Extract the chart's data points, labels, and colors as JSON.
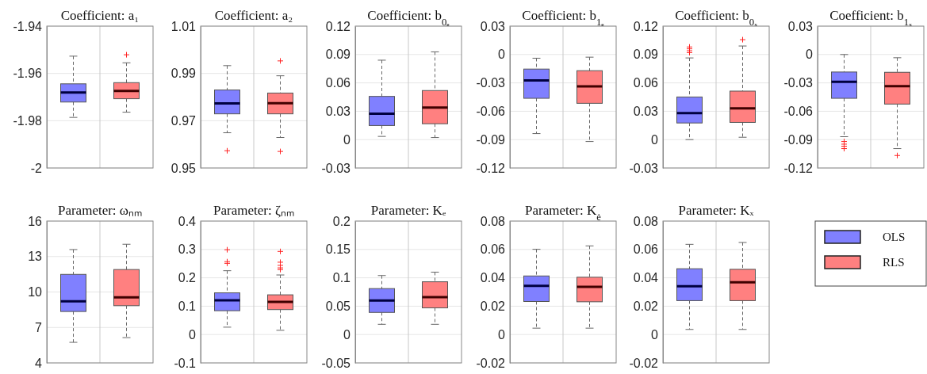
{
  "chart_data": [
    {
      "type": "box",
      "title": "Coefficient: a₁",
      "categories": [
        null
      ],
      "ylim": [
        -2,
        -1.94
      ],
      "yticks": [
        -2,
        -1.98,
        -1.96,
        -1.94
      ],
      "grid": true,
      "series": [
        {
          "color": "#8080ff",
          "boxes": [
            {
              "low": -1.9786,
              "q1": -1.9721,
              "median": -1.9681,
              "q3": -1.9644,
              "high": -1.9527
            }
          ]
        },
        {
          "color": "#ff8080",
          "boxes": [
            {
              "low": -1.9764,
              "q1": -1.9707,
              "median": -1.9674,
              "q3": -1.9639,
              "high": -1.9555,
              "outliers": [
                -1.9521
              ]
            }
          ]
        }
      ]
    },
    {
      "type": "box",
      "title": "Coefficient: a₂",
      "categories": [
        null
      ],
      "ylim": [
        0.95,
        1.01
      ],
      "yticks": [
        0.95,
        0.97,
        0.99,
        1.01
      ],
      "grid": true,
      "series": [
        {
          "color": "#8080ff",
          "boxes": [
            {
              "low": 0.9649,
              "q1": 0.9729,
              "median": 0.9773,
              "q3": 0.983,
              "high": 0.9933,
              "outliers": [
                0.9573
              ]
            }
          ]
        },
        {
          "color": "#ff8080",
          "boxes": [
            {
              "low": 0.9629,
              "q1": 0.9729,
              "median": 0.9774,
              "q3": 0.9817,
              "high": 0.989,
              "outliers": [
                0.957,
                0.9953
              ]
            }
          ]
        }
      ]
    },
    {
      "type": "box",
      "title": "Coefficient: b$_{0ₑ}$",
      "categories": [
        null
      ],
      "ylim": [
        -0.03,
        0.12
      ],
      "yticks": [
        -0.03,
        0,
        0.03,
        0.06,
        0.09,
        0.12
      ],
      "grid": true,
      "series": [
        {
          "color": "#8080ff",
          "boxes": [
            {
              "low": 0.0034,
              "q1": 0.0149,
              "median": 0.0275,
              "q3": 0.0457,
              "high": 0.084
            }
          ]
        },
        {
          "color": "#ff8080",
          "boxes": [
            {
              "low": 0.0022,
              "q1": 0.0168,
              "median": 0.0339,
              "q3": 0.0519,
              "high": 0.0928
            }
          ]
        }
      ]
    },
    {
      "type": "box",
      "title": "Coefficient: b$_{1ₑ}$",
      "categories": [
        null
      ],
      "ylim": [
        -0.12,
        0.03
      ],
      "yticks": [
        -0.12,
        -0.09,
        -0.06,
        -0.03,
        0,
        0.03
      ],
      "grid": true,
      "series": [
        {
          "color": "#8080ff",
          "boxes": [
            {
              "low": -0.0836,
              "q1": -0.0463,
              "median": -0.0275,
              "q3": -0.0154,
              "high": -0.0039
            }
          ]
        },
        {
          "color": "#ff8080",
          "boxes": [
            {
              "low": -0.092,
              "q1": -0.0516,
              "median": -0.0336,
              "q3": -0.0171,
              "high": -0.0028
            }
          ]
        }
      ]
    },
    {
      "type": "box",
      "title": "Coefficient: b$_{0ₓ}$",
      "categories": [
        null
      ],
      "ylim": [
        -0.03,
        0.12
      ],
      "yticks": [
        -0.03,
        0,
        0.03,
        0.06,
        0.09,
        0.12
      ],
      "grid": true,
      "series": [
        {
          "color": "#8080ff",
          "boxes": [
            {
              "low": 0,
              "q1": 0.0176,
              "median": 0.028,
              "q3": 0.0451,
              "high": 0.0864,
              "outliers": [
                0.092,
                0.094,
                0.096,
                0.098
              ]
            }
          ]
        },
        {
          "color": "#ff8080",
          "boxes": [
            {
              "low": 0.0025,
              "q1": 0.0182,
              "median": 0.0331,
              "q3": 0.0513,
              "high": 0.099,
              "outliers": [
                0.1057
              ]
            }
          ]
        }
      ]
    },
    {
      "type": "box",
      "title": "Coefficient: b$_{1ₓ}$",
      "categories": [
        null
      ],
      "ylim": [
        -0.12,
        0.03
      ],
      "yticks": [
        -0.12,
        -0.09,
        -0.06,
        -0.03,
        0,
        0.03
      ],
      "grid": true,
      "series": [
        {
          "color": "#8080ff",
          "boxes": [
            {
              "low": -0.0869,
              "q1": -0.0463,
              "median": -0.0289,
              "q3": -0.0185,
              "high": 0,
              "outliers": [
                -0.092,
                -0.0948,
                -0.097,
                -0.0995
              ]
            }
          ]
        },
        {
          "color": "#ff8080",
          "boxes": [
            {
              "low": -0.0995,
              "q1": -0.0524,
              "median": -0.0334,
              "q3": -0.0188,
              "high": -0.0034,
              "outliers": [
                -0.1068
              ]
            }
          ]
        }
      ]
    },
    {
      "type": "box",
      "title": "Parameter: ωₙₘ",
      "categories": [
        null
      ],
      "ylim": [
        4,
        16
      ],
      "yticks": [
        4,
        7,
        10,
        13,
        16
      ],
      "grid": true,
      "series": [
        {
          "color": "#8080ff",
          "boxes": [
            {
              "low": 5.74,
              "q1": 8.35,
              "median": 9.22,
              "q3": 11.49,
              "high": 13.59
            }
          ]
        },
        {
          "color": "#ff8080",
          "boxes": [
            {
              "low": 6.14,
              "q1": 8.84,
              "median": 9.55,
              "q3": 11.9,
              "high": 14.04
            }
          ]
        }
      ]
    },
    {
      "type": "box",
      "title": "Parameter: ζₙₘ",
      "categories": [
        null
      ],
      "ylim": [
        -0.1,
        0.4
      ],
      "yticks": [
        -0.1,
        0,
        0.1,
        0.2,
        0.3,
        0.4
      ],
      "grid": true,
      "series": [
        {
          "color": "#8080ff",
          "boxes": [
            {
              "low": 0.026,
              "q1": 0.084,
              "median": 0.121,
              "q3": 0.147,
              "high": 0.225,
              "outliers": [
                0.251,
                0.257,
                0.299
              ]
            }
          ]
        },
        {
          "color": "#ff8080",
          "boxes": [
            {
              "low": 0.015,
              "q1": 0.088,
              "median": 0.115,
              "q3": 0.14,
              "high": 0.21,
              "outliers": [
                0.229,
                0.235,
                0.244,
                0.255,
                0.293
              ]
            }
          ]
        }
      ]
    },
    {
      "type": "box",
      "title": "Parameter: Kₑ",
      "categories": [
        null
      ],
      "ylim": [
        -0.05,
        0.2
      ],
      "yticks": [
        -0.05,
        0,
        0.05,
        0.1,
        0.15,
        0.2
      ],
      "grid": true,
      "series": [
        {
          "color": "#8080ff",
          "boxes": [
            {
              "low": 0.018,
              "q1": 0.039,
              "median": 0.06,
              "q3": 0.081,
              "high": 0.104
            }
          ]
        },
        {
          "color": "#ff8080",
          "boxes": [
            {
              "low": 0.018,
              "q1": 0.047,
              "median": 0.066,
              "q3": 0.093,
              "high": 0.11
            }
          ]
        }
      ]
    },
    {
      "type": "box",
      "title": "Parameter: K$_{ė}$",
      "categories": [
        null
      ],
      "ylim": [
        -0.02,
        0.08
      ],
      "yticks": [
        -0.02,
        0,
        0.02,
        0.04,
        0.06,
        0.08
      ],
      "grid": true,
      "series": [
        {
          "color": "#8080ff",
          "boxes": [
            {
              "low": 0.0045,
              "q1": 0.0233,
              "median": 0.0343,
              "q3": 0.0413,
              "high": 0.0601
            }
          ]
        },
        {
          "color": "#ff8080",
          "boxes": [
            {
              "low": 0.0045,
              "q1": 0.0231,
              "median": 0.0337,
              "q3": 0.0404,
              "high": 0.0625
            }
          ]
        }
      ]
    },
    {
      "type": "box",
      "title": "Parameter: Kₓ",
      "categories": [
        null
      ],
      "ylim": [
        -0.02,
        0.08
      ],
      "yticks": [
        -0.02,
        0,
        0.02,
        0.04,
        0.06,
        0.08
      ],
      "grid": true,
      "legend": "right",
      "series": [
        {
          "name": "OLS",
          "color": "#8080ff",
          "boxes": [
            {
              "low": 0.0036,
              "q1": 0.0239,
              "median": 0.0341,
              "q3": 0.0464,
              "high": 0.0636
            }
          ]
        },
        {
          "name": "RLS",
          "color": "#ff8080",
          "boxes": [
            {
              "low": 0.0036,
              "q1": 0.0239,
              "median": 0.0369,
              "q3": 0.046,
              "high": 0.0649
            }
          ]
        }
      ]
    }
  ]
}
